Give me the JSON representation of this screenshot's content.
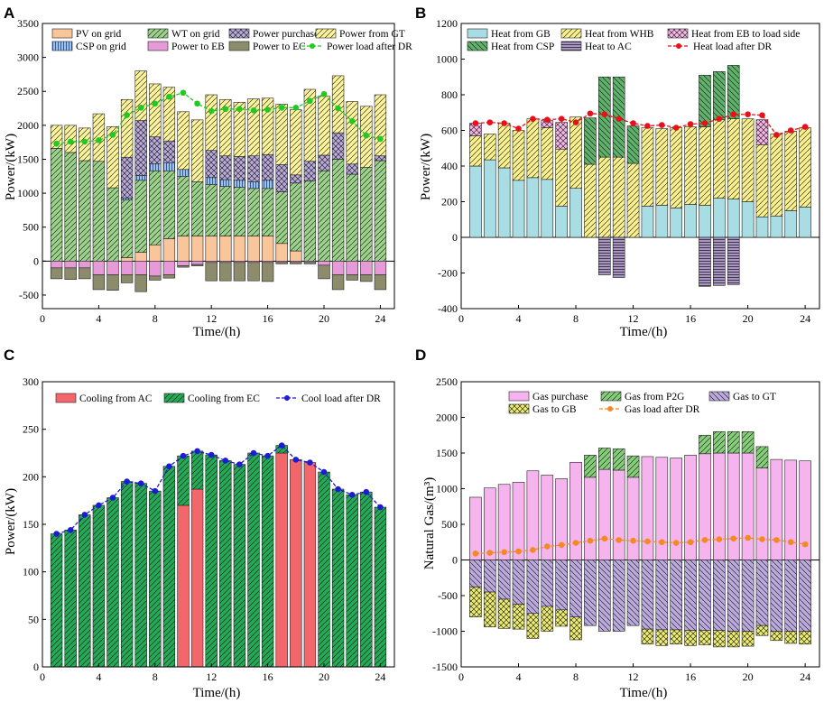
{
  "colors": {
    "pv": "#f9c59b",
    "wt": "#9bd18a",
    "csp": "#9dc3e6",
    "eb": "#e69ad8",
    "purchase": "#b7a9d8",
    "ec": "#8c8c6c",
    "gt": "#fbf39b",
    "loadA": "#22c922",
    "gb": "#a8dde3",
    "whb": "#f8f08e",
    "csp_heat": "#5fb06a",
    "ac": "#a895c4",
    "eb_heat": "#f2b5e4",
    "loadB": "#e8101a",
    "ac_cool": "#f2676b",
    "ec_cool": "#24a957",
    "loadC": "#1c1cd6",
    "gas": "#f6b4ee",
    "p2g": "#86cd7a",
    "gt_gas": "#b9a9dc",
    "gb_gas": "#ecec74",
    "loadD": "#f28a24"
  },
  "chart_data": [
    {
      "panel": "A",
      "type": "bar",
      "stacked": true,
      "xlabel": "Time/(h)",
      "ylabel": "Power/(kW)",
      "ylim": [
        -700,
        3500
      ],
      "yticks": [
        -500,
        0,
        500,
        1000,
        1500,
        2000,
        2500,
        3000,
        3500
      ],
      "xlim": [
        0,
        25
      ],
      "xticks": [
        0,
        4,
        8,
        12,
        16,
        20,
        24
      ],
      "x": [
        1,
        2,
        3,
        4,
        5,
        6,
        7,
        8,
        9,
        10,
        11,
        12,
        13,
        14,
        15,
        16,
        17,
        18,
        19,
        20,
        21,
        22,
        23,
        24
      ],
      "series": [
        {
          "name": "PV on grid",
          "key": "pv",
          "values": [
            0,
            0,
            0,
            0,
            0,
            50,
            130,
            240,
            330,
            370,
            370,
            370,
            370,
            370,
            370,
            370,
            260,
            150,
            0,
            0,
            0,
            0,
            0,
            0
          ]
        },
        {
          "name": "WT on grid",
          "key": "wt",
          "values": [
            1660,
            1600,
            1480,
            1470,
            1080,
            850,
            1060,
            1090,
            1000,
            880,
            800,
            760,
            730,
            720,
            700,
            700,
            760,
            1000,
            1180,
            1330,
            1500,
            1280,
            1380,
            1480
          ]
        },
        {
          "name": "CSP on grid",
          "key": "csp",
          "values": [
            0,
            0,
            0,
            0,
            0,
            30,
            70,
            100,
            120,
            100,
            0,
            100,
            100,
            100,
            100,
            120,
            0,
            0,
            0,
            0,
            0,
            0,
            0,
            0
          ]
        },
        {
          "name": "Power purchase",
          "key": "purchase",
          "values": [
            0,
            0,
            0,
            0,
            0,
            600,
            810,
            400,
            320,
            0,
            0,
            400,
            350,
            350,
            380,
            380,
            400,
            120,
            290,
            230,
            390,
            150,
            0,
            70
          ]
        },
        {
          "name": "Power from GT",
          "key": "gt",
          "values": [
            340,
            400,
            480,
            700,
            900,
            850,
            730,
            780,
            790,
            850,
            910,
            820,
            830,
            800,
            840,
            830,
            890,
            960,
            1060,
            870,
            840,
            920,
            900,
            900
          ]
        },
        {
          "name": "Power to EB",
          "key": "eb",
          "values": [
            -100,
            -100,
            -100,
            -200,
            -200,
            -200,
            -200,
            -220,
            -200,
            -70,
            -50,
            -20,
            -20,
            -20,
            -20,
            -20,
            -20,
            -20,
            -20,
            -60,
            -200,
            -200,
            -200,
            -200
          ]
        },
        {
          "name": "Power to EC",
          "key": "ec",
          "values": [
            -160,
            -170,
            -160,
            -220,
            -230,
            -120,
            -250,
            -60,
            -50,
            -20,
            -20,
            -270,
            -270,
            -270,
            -270,
            -280,
            -20,
            -20,
            -20,
            -200,
            -220,
            -80,
            -100,
            -220
          ]
        }
      ],
      "line": {
        "name": "Power load after DR",
        "key": "loadA",
        "values": [
          1730,
          1760,
          1760,
          1780,
          1860,
          2150,
          2260,
          2320,
          2420,
          2480,
          2320,
          2210,
          2240,
          2240,
          2220,
          2230,
          2260,
          2260,
          2360,
          2460,
          2250,
          2060,
          1850,
          1800
        ]
      }
    },
    {
      "panel": "B",
      "type": "bar",
      "stacked": true,
      "xlabel": "Time/(h)",
      "ylabel": "Power/(kW)",
      "ylim": [
        -400,
        1200
      ],
      "yticks": [
        -400,
        -200,
        0,
        200,
        400,
        600,
        800,
        1000,
        1200
      ],
      "xlim": [
        0,
        25
      ],
      "xticks": [
        0,
        4,
        8,
        12,
        16,
        20,
        24
      ],
      "x": [
        1,
        2,
        3,
        4,
        5,
        6,
        7,
        8,
        9,
        10,
        11,
        12,
        13,
        14,
        15,
        16,
        17,
        18,
        19,
        20,
        21,
        22,
        23,
        24
      ],
      "series": [
        {
          "name": "Heat from GB",
          "key": "gb",
          "values": [
            400,
            435,
            390,
            320,
            335,
            325,
            175,
            275,
            0,
            0,
            0,
            0,
            175,
            180,
            165,
            185,
            180,
            220,
            215,
            200,
            115,
            120,
            150,
            170
          ]
        },
        {
          "name": "Heat from WHB",
          "key": "whb",
          "values": [
            170,
            145,
            250,
            280,
            330,
            290,
            320,
            400,
            410,
            450,
            450,
            415,
            440,
            430,
            450,
            435,
            440,
            440,
            450,
            465,
            405,
            460,
            445,
            445
          ]
        },
        {
          "name": "Heat from CSP",
          "key": "csp_heat",
          "values": [
            0,
            0,
            0,
            0,
            0,
            0,
            0,
            0,
            260,
            450,
            450,
            210,
            0,
            0,
            0,
            0,
            290,
            270,
            300,
            0,
            0,
            0,
            0,
            0
          ]
        },
        {
          "name": "Heat from EB to load side",
          "key": "eb_heat",
          "values": [
            70,
            0,
            0,
            0,
            0,
            40,
            150,
            0,
            0,
            0,
            0,
            0,
            0,
            0,
            0,
            0,
            0,
            0,
            0,
            0,
            140,
            0,
            0,
            0
          ]
        },
        {
          "name": "Heat to AC",
          "key": "ac",
          "values": [
            0,
            0,
            0,
            0,
            0,
            0,
            0,
            0,
            0,
            -210,
            -225,
            0,
            0,
            0,
            0,
            0,
            -275,
            -270,
            -265,
            0,
            0,
            0,
            0,
            0
          ]
        }
      ],
      "line": {
        "name": "Heat load after DR",
        "key": "loadB",
        "values": [
          640,
          645,
          640,
          610,
          665,
          660,
          665,
          645,
          695,
          690,
          665,
          640,
          625,
          630,
          615,
          635,
          640,
          665,
          690,
          690,
          685,
          575,
          600,
          620
        ]
      }
    },
    {
      "panel": "C",
      "type": "bar",
      "stacked": true,
      "xlabel": "Time/(h)",
      "ylabel": "Power/(kW)",
      "ylim": [
        0,
        300
      ],
      "yticks": [
        0,
        50,
        100,
        150,
        200,
        250,
        300
      ],
      "xlim": [
        0,
        25
      ],
      "xticks": [
        0,
        4,
        8,
        12,
        16,
        20,
        24
      ],
      "x": [
        1,
        2,
        3,
        4,
        5,
        6,
        7,
        8,
        9,
        10,
        11,
        12,
        13,
        14,
        15,
        16,
        17,
        18,
        19,
        20,
        21,
        22,
        23,
        24
      ],
      "series": [
        {
          "name": "Cooling from AC",
          "key": "ac_cool",
          "values": [
            0,
            0,
            0,
            0,
            0,
            0,
            0,
            0,
            0,
            170,
            187,
            0,
            0,
            0,
            0,
            0,
            225,
            218,
            215,
            0,
            0,
            0,
            0,
            0
          ]
        },
        {
          "name": "Cooling from EC",
          "key": "ec_cool",
          "values": [
            140,
            144,
            160,
            170,
            178,
            195,
            193,
            185,
            211,
            52,
            40,
            223,
            217,
            213,
            225,
            222,
            8,
            0,
            0,
            205,
            187,
            181,
            184,
            168
          ]
        }
      ],
      "line": {
        "name": "Cool load after DR",
        "key": "loadC",
        "values": [
          140,
          144,
          160,
          170,
          178,
          195,
          193,
          185,
          211,
          222,
          227,
          223,
          217,
          213,
          225,
          222,
          233,
          218,
          215,
          205,
          187,
          181,
          184,
          168
        ]
      }
    },
    {
      "panel": "D",
      "type": "bar",
      "stacked": true,
      "xlabel": "Time/(h)",
      "ylabel": "Natural Gas/(m³)",
      "ylim": [
        -1500,
        2500
      ],
      "yticks": [
        -1500,
        -1000,
        -500,
        0,
        500,
        1000,
        1500,
        2000,
        2500
      ],
      "xlim": [
        0,
        25
      ],
      "xticks": [
        0,
        4,
        8,
        12,
        16,
        20,
        24
      ],
      "x": [
        1,
        2,
        3,
        4,
        5,
        6,
        7,
        8,
        9,
        10,
        11,
        12,
        13,
        14,
        15,
        16,
        17,
        18,
        19,
        20,
        21,
        22,
        23,
        24
      ],
      "series": [
        {
          "name": "Gas purchase",
          "key": "gas",
          "values": [
            880,
            1010,
            1060,
            1090,
            1250,
            1190,
            1140,
            1370,
            1160,
            1270,
            1260,
            1160,
            1450,
            1440,
            1430,
            1470,
            1490,
            1500,
            1500,
            1500,
            1290,
            1410,
            1400,
            1390
          ]
        },
        {
          "name": "Gas from P2G",
          "key": "p2g",
          "values": [
            0,
            0,
            0,
            0,
            0,
            0,
            0,
            0,
            310,
            300,
            300,
            300,
            0,
            0,
            0,
            0,
            260,
            300,
            300,
            300,
            300,
            0,
            0,
            0
          ]
        },
        {
          "name": "Gas to GT",
          "key": "gt_gas",
          "values": [
            -380,
            -450,
            -550,
            -620,
            -750,
            -650,
            -700,
            -800,
            -920,
            -1000,
            -1000,
            -920,
            -970,
            -980,
            -980,
            -990,
            -990,
            -990,
            -1000,
            -1000,
            -920,
            -1000,
            -1000,
            -1000
          ]
        },
        {
          "name": "Gas to GB",
          "key": "gb_gas",
          "values": [
            -420,
            -490,
            -410,
            -350,
            -350,
            -350,
            -230,
            -320,
            0,
            0,
            0,
            0,
            -210,
            -220,
            -200,
            -210,
            -200,
            -230,
            -220,
            -210,
            -140,
            -130,
            -170,
            -180
          ]
        }
      ],
      "line": {
        "name": "Gas load after DR",
        "key": "loadD",
        "values": [
          90,
          100,
          110,
          120,
          140,
          190,
          210,
          240,
          270,
          300,
          280,
          270,
          260,
          250,
          240,
          250,
          280,
          290,
          300,
          310,
          290,
          280,
          250,
          220
        ]
      }
    }
  ]
}
